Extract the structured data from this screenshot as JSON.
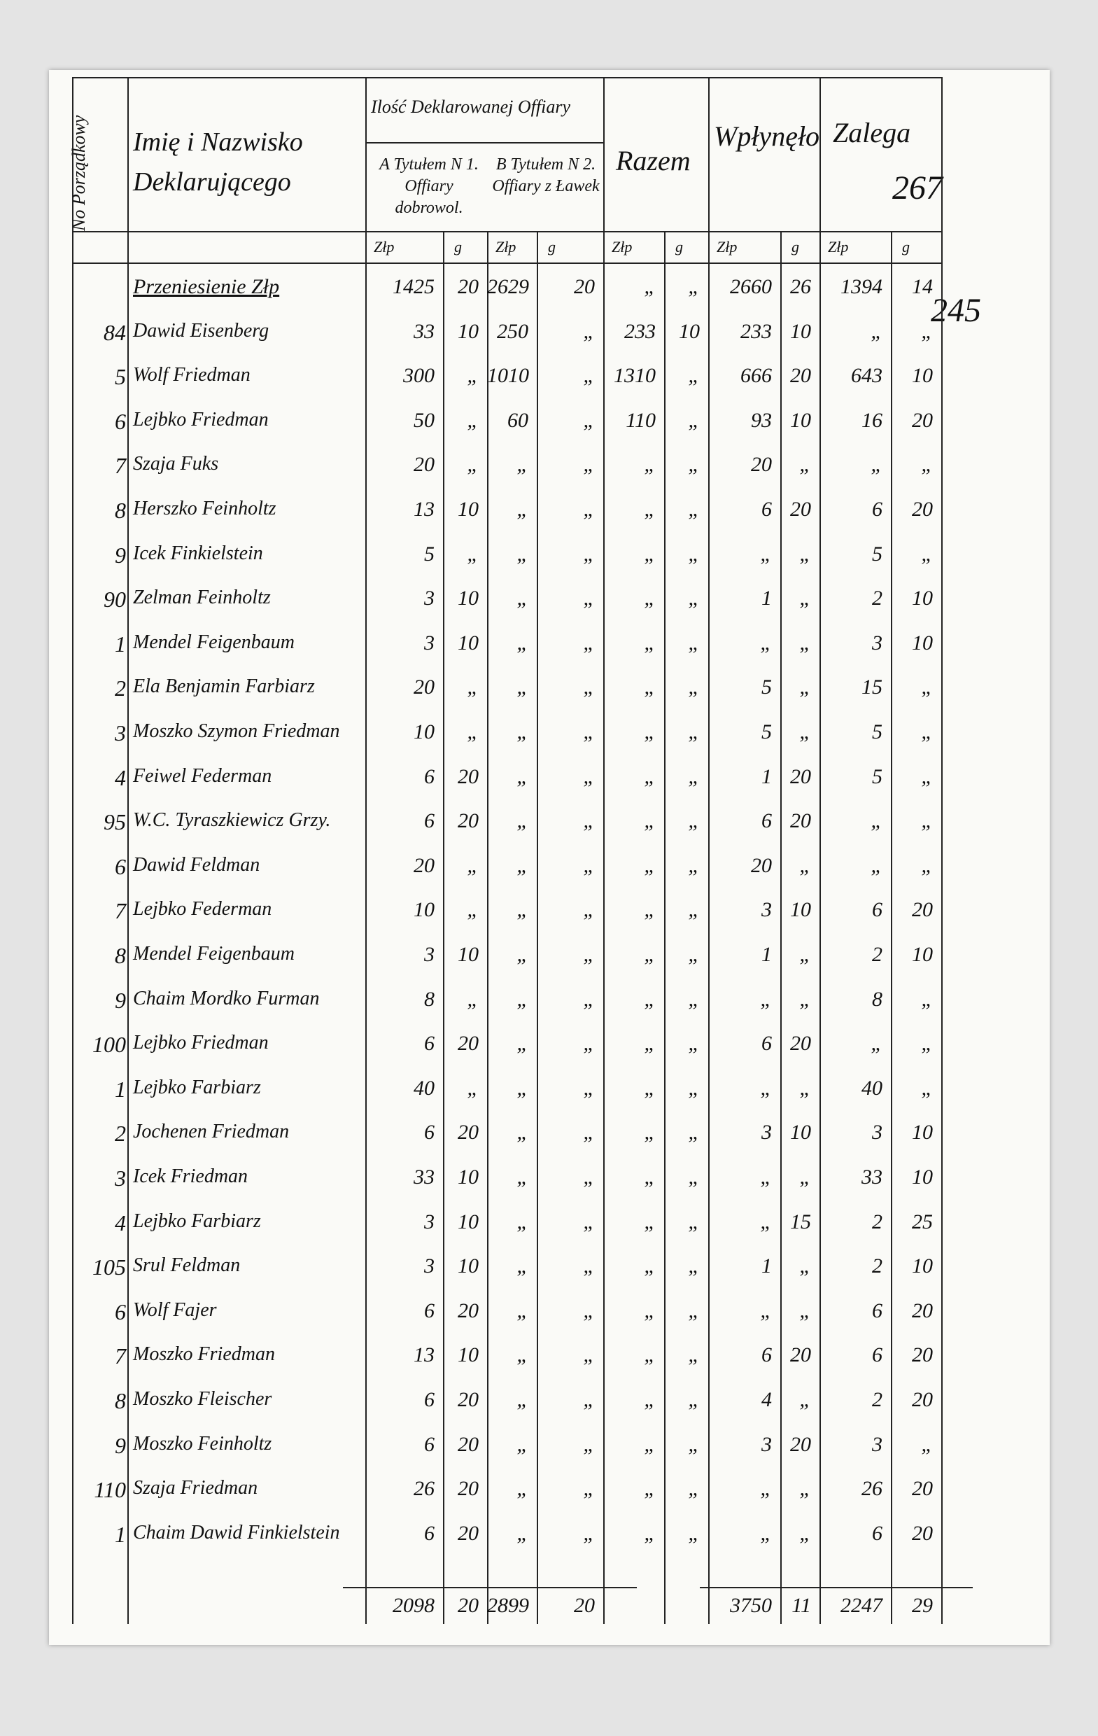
{
  "header": {
    "no": "No Porządkowy",
    "name": "Imię i Nazwisko Deklarującego",
    "group": "Ilość Deklarowanej Offiary",
    "col_a": "A Tytułem N 1. Offiary dobrowol.",
    "col_b": "B Tytułem N 2. Offiary z Ławek",
    "razem": "Razem",
    "wplynelo": "Wpłynęło",
    "zalega": "Zalega",
    "unit_zl": "Złp",
    "unit_gr": "g",
    "page_no": "267",
    "page_no_new": "245"
  },
  "carried": {
    "label": "Przeniesienie Złp",
    "cells": [
      "1425",
      "20",
      "2629",
      "20",
      "„",
      "„",
      "2660",
      "26",
      "1394",
      "14"
    ]
  },
  "rows": [
    {
      "no": "84",
      "name": "Dawid Eisenberg",
      "cells": [
        "33",
        "10",
        "250",
        "„",
        "233",
        "10",
        "233",
        "10",
        "„",
        "„"
      ]
    },
    {
      "no": "5",
      "name": "Wolf Friedman",
      "cells": [
        "300",
        "„",
        "1010",
        "„",
        "1310",
        "„",
        "666",
        "20",
        "643",
        "10"
      ]
    },
    {
      "no": "6",
      "name": "Lejbko Friedman",
      "cells": [
        "50",
        "„",
        "60",
        "„",
        "110",
        "„",
        "93",
        "10",
        "16",
        "20"
      ]
    },
    {
      "no": "7",
      "name": "Szaja Fuks",
      "cells": [
        "20",
        "„",
        "„",
        "„",
        "„",
        "„",
        "20",
        "„",
        "„",
        "„"
      ]
    },
    {
      "no": "8",
      "name": "Herszko Feinholtz",
      "cells": [
        "13",
        "10",
        "„",
        "„",
        "„",
        "„",
        "6",
        "20",
        "6",
        "20"
      ]
    },
    {
      "no": "9",
      "name": "Icek Finkielstein",
      "cells": [
        "5",
        "„",
        "„",
        "„",
        "„",
        "„",
        "„",
        "„",
        "5",
        "„"
      ]
    },
    {
      "no": "90",
      "name": "Zelman Feinholtz",
      "cells": [
        "3",
        "10",
        "„",
        "„",
        "„",
        "„",
        "1",
        "„",
        "2",
        "10"
      ]
    },
    {
      "no": "1",
      "name": "Mendel Feigenbaum",
      "cells": [
        "3",
        "10",
        "„",
        "„",
        "„",
        "„",
        "„",
        "„",
        "3",
        "10"
      ]
    },
    {
      "no": "2",
      "name": "Ela Benjamin Farbiarz",
      "cells": [
        "20",
        "„",
        "„",
        "„",
        "„",
        "„",
        "5",
        "„",
        "15",
        "„"
      ]
    },
    {
      "no": "3",
      "name": "Moszko Szymon Friedman",
      "cells": [
        "10",
        "„",
        "„",
        "„",
        "„",
        "„",
        "5",
        "„",
        "5",
        "„"
      ]
    },
    {
      "no": "4",
      "name": "Feiwel Federman",
      "cells": [
        "6",
        "20",
        "„",
        "„",
        "„",
        "„",
        "1",
        "20",
        "5",
        "„"
      ]
    },
    {
      "no": "95",
      "name": "W.C. Tyraszkiewicz Grzy.",
      "cells": [
        "6",
        "20",
        "„",
        "„",
        "„",
        "„",
        "6",
        "20",
        "„",
        "„"
      ]
    },
    {
      "no": "6",
      "name": "Dawid Feldman",
      "cells": [
        "20",
        "„",
        "„",
        "„",
        "„",
        "„",
        "20",
        "„",
        "„",
        "„"
      ]
    },
    {
      "no": "7",
      "name": "Lejbko Federman",
      "cells": [
        "10",
        "„",
        "„",
        "„",
        "„",
        "„",
        "3",
        "10",
        "6",
        "20"
      ]
    },
    {
      "no": "8",
      "name": "Mendel Feigenbaum",
      "cells": [
        "3",
        "10",
        "„",
        "„",
        "„",
        "„",
        "1",
        "„",
        "2",
        "10"
      ]
    },
    {
      "no": "9",
      "name": "Chaim Mordko Furman",
      "cells": [
        "8",
        "„",
        "„",
        "„",
        "„",
        "„",
        "„",
        "„",
        "8",
        "„"
      ]
    },
    {
      "no": "100",
      "name": "Lejbko Friedman",
      "cells": [
        "6",
        "20",
        "„",
        "„",
        "„",
        "„",
        "6",
        "20",
        "„",
        "„"
      ]
    },
    {
      "no": "1",
      "name": "Lejbko Farbiarz",
      "cells": [
        "40",
        "„",
        "„",
        "„",
        "„",
        "„",
        "„",
        "„",
        "40",
        "„"
      ]
    },
    {
      "no": "2",
      "name": "Jochenen Friedman",
      "cells": [
        "6",
        "20",
        "„",
        "„",
        "„",
        "„",
        "3",
        "10",
        "3",
        "10"
      ]
    },
    {
      "no": "3",
      "name": "Icek Friedman",
      "cells": [
        "33",
        "10",
        "„",
        "„",
        "„",
        "„",
        "„",
        "„",
        "33",
        "10"
      ]
    },
    {
      "no": "4",
      "name": "Lejbko Farbiarz",
      "cells": [
        "3",
        "10",
        "„",
        "„",
        "„",
        "„",
        "„",
        "15",
        "2",
        "25"
      ]
    },
    {
      "no": "105",
      "name": "Srul Feldman",
      "cells": [
        "3",
        "10",
        "„",
        "„",
        "„",
        "„",
        "1",
        "„",
        "2",
        "10"
      ]
    },
    {
      "no": "6",
      "name": "Wolf Fajer",
      "cells": [
        "6",
        "20",
        "„",
        "„",
        "„",
        "„",
        "„",
        "„",
        "6",
        "20"
      ]
    },
    {
      "no": "7",
      "name": "Moszko Friedman",
      "cells": [
        "13",
        "10",
        "„",
        "„",
        "„",
        "„",
        "6",
        "20",
        "6",
        "20"
      ]
    },
    {
      "no": "8",
      "name": "Moszko Fleischer",
      "cells": [
        "6",
        "20",
        "„",
        "„",
        "„",
        "„",
        "4",
        "„",
        "2",
        "20"
      ]
    },
    {
      "no": "9",
      "name": "Moszko Feinholtz",
      "cells": [
        "6",
        "20",
        "„",
        "„",
        "„",
        "„",
        "3",
        "20",
        "3",
        "„"
      ]
    },
    {
      "no": "110",
      "name": "Szaja Friedman",
      "cells": [
        "26",
        "20",
        "„",
        "„",
        "„",
        "„",
        "„",
        "„",
        "26",
        "20"
      ]
    },
    {
      "no": "1",
      "name": "Chaim Dawid Finkielstein",
      "cells": [
        "6",
        "20",
        "„",
        "„",
        "„",
        "„",
        "„",
        "„",
        "6",
        "20"
      ]
    }
  ],
  "totals": {
    "n1": [
      "2098",
      "20"
    ],
    "n2": [
      "2899",
      "20"
    ],
    "wplynelo": [
      "3750",
      "11"
    ],
    "zalega": [
      "2247",
      "29"
    ]
  }
}
